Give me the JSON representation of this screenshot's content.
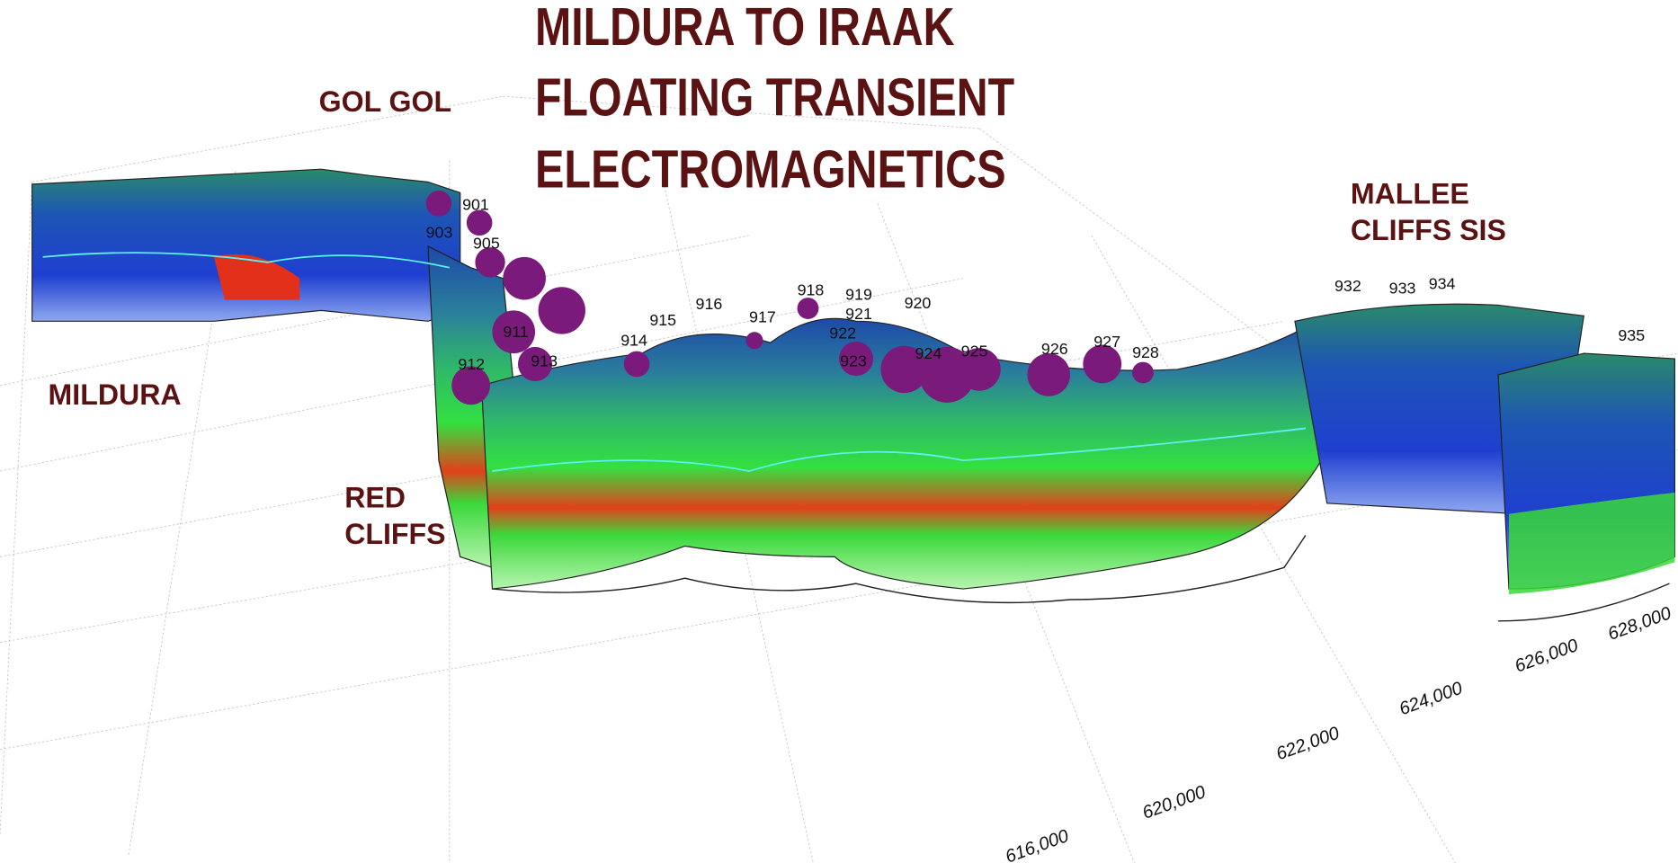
{
  "title": [
    "MILDURA TO IRAAK",
    "FLOATING TRANSIENT",
    "ELECTROMAGNETICS"
  ],
  "places": [
    {
      "lines": [
        "GOL GOL"
      ]
    },
    {
      "lines": [
        "MILDURA"
      ]
    },
    {
      "lines": [
        "RED",
        "CLIFFS"
      ]
    },
    {
      "lines": [
        "MALLEE",
        "CLIFFS SIS"
      ]
    }
  ],
  "stations": [
    "901",
    "903",
    "905",
    "911",
    "912",
    "913",
    "914",
    "915",
    "916",
    "917",
    "918",
    "919",
    "920",
    "921",
    "922",
    "923",
    "924",
    "925",
    "926",
    "927",
    "928",
    "932",
    "933",
    "934",
    "935"
  ],
  "easting_labels": [
    "616,000",
    "620,000",
    "622,000",
    "624,000",
    "626,000",
    "628,000"
  ]
}
